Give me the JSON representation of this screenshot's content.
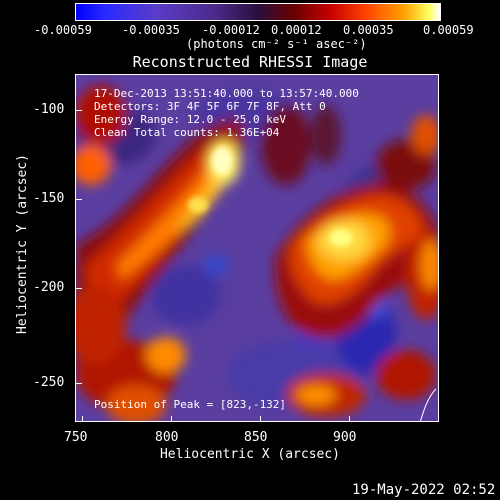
{
  "colorbar": {
    "tick_labels": [
      "-0.00059",
      "-0.00035",
      "-0.00012",
      "0.00012",
      "0.00035",
      "0.00059"
    ],
    "unit_label": "(photons cm⁻² s⁻¹ asec⁻²)"
  },
  "title": "Reconstructed RHESSI Image",
  "annotations": {
    "time_range": "17-Dec-2013 13:51:40.000 to 13:57:40.000",
    "detectors": "Detectors: 3F 4F 5F 6F 7F 8F, Att 0",
    "energy": "Energy Range: 12.0 - 25.0 keV",
    "clean": "Clean    Total counts: 1.36E+04",
    "peak": "Position of Peak = [823,-132]"
  },
  "axes": {
    "xlabel": "Heliocentric X (arcsec)",
    "ylabel": "Heliocentric Y (arcsec)",
    "x_ticks": [
      "750",
      "800",
      "850",
      "900"
    ],
    "y_ticks": [
      "-100",
      "-150",
      "-200",
      "-250"
    ]
  },
  "footer": {
    "timestamp": "19-May-2022 02:52"
  }
}
